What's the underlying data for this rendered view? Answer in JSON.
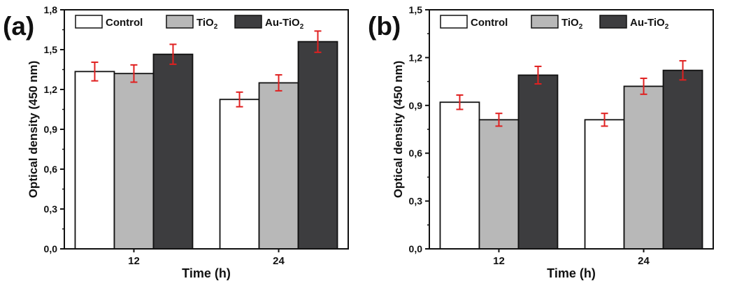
{
  "chart_data": [
    {
      "type": "bar",
      "panel_label": "(a)",
      "categories": [
        "12",
        "24"
      ],
      "series": [
        {
          "name": "Control",
          "values": [
            1.335,
            1.125
          ],
          "errors": [
            0.07,
            0.055
          ]
        },
        {
          "name": "TiO₂",
          "values": [
            1.32,
            1.25
          ],
          "errors": [
            0.065,
            0.06
          ]
        },
        {
          "name": "Au-TiO₂",
          "values": [
            1.465,
            1.56
          ],
          "errors": [
            0.075,
            0.08
          ]
        }
      ],
      "xlabel": "Time (h)",
      "ylabel": "Optical density (450 nm)",
      "ylim": [
        0,
        1.8
      ],
      "yticks": [
        "0,0",
        "0,3",
        "0,6",
        "0,9",
        "1,2",
        "1,5",
        "1,8"
      ],
      "legend_position": "top-left",
      "grid": false,
      "colors": {
        "Control": "#ffffff",
        "TiO₂": "#b8b8b8",
        "Au-TiO₂": "#3d3d3f",
        "error_bar": "#e02020"
      }
    },
    {
      "type": "bar",
      "panel_label": "(b)",
      "categories": [
        "12",
        "24"
      ],
      "series": [
        {
          "name": "Control",
          "values": [
            0.92,
            0.81
          ],
          "errors": [
            0.045,
            0.04
          ]
        },
        {
          "name": "TiO₂",
          "values": [
            0.81,
            1.02
          ],
          "errors": [
            0.04,
            0.05
          ]
        },
        {
          "name": "Au-TiO₂",
          "values": [
            1.09,
            1.12
          ],
          "errors": [
            0.055,
            0.06
          ]
        }
      ],
      "xlabel": "Time (h)",
      "ylabel": "Optical density (450 nm)",
      "ylim": [
        0,
        1.5
      ],
      "yticks": [
        "0,0",
        "0,3",
        "0,6",
        "0,9",
        "1,2",
        "1,5"
      ],
      "legend_position": "top-left",
      "grid": false,
      "colors": {
        "Control": "#ffffff",
        "TiO₂": "#b8b8b8",
        "Au-TiO₂": "#3d3d3f",
        "error_bar": "#e02020"
      }
    }
  ]
}
